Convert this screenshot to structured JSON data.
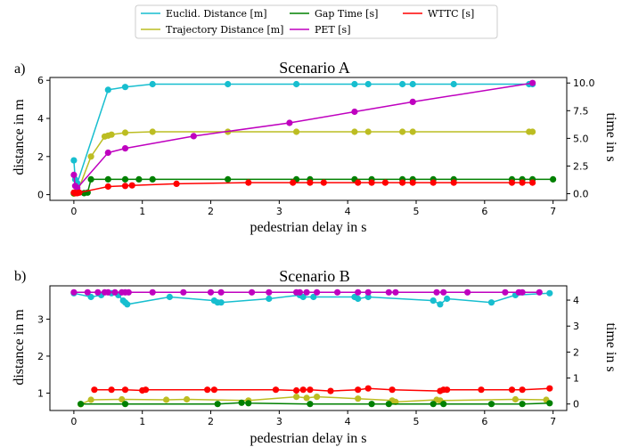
{
  "legend": {
    "items": [
      {
        "label": "Euclid. Distance [m]",
        "color": "#17becf"
      },
      {
        "label": "Trajectory Distance [m]",
        "color": "#bcbd22"
      },
      {
        "label": "Gap Time [s]",
        "color": "#008000"
      },
      {
        "label": "PET [s]",
        "color": "#bf00bf"
      },
      {
        "label": "WTTC [s]",
        "color": "#ff0000"
      }
    ]
  },
  "chart_data": [
    {
      "type": "line",
      "panel_label": "a)",
      "title": "Scenario A",
      "xlabel": "pedestrian delay in s",
      "ylabel": "distance in m",
      "y2label": "time in s",
      "xlim": [
        -0.35,
        7.2
      ],
      "ylim": [
        -0.3,
        6.15
      ],
      "y2lim": [
        -0.6,
        10.5
      ],
      "xticks": [
        "0",
        "1",
        "2",
        "3",
        "4",
        "5",
        "6",
        "7"
      ],
      "yticks": [
        "0",
        "2",
        "4",
        "6"
      ],
      "y2ticks": [
        "0.0",
        "2.5",
        "5.0",
        "7.5",
        "10.0"
      ],
      "grid": false,
      "series": [
        {
          "name": "Euclid. Distance [m]",
          "color": "#17becf",
          "axis": "left",
          "x": [
            0.0,
            0.02,
            0.05,
            0.5,
            0.75,
            1.15,
            2.25,
            3.25,
            4.1,
            4.3,
            4.8,
            4.95,
            5.55,
            6.65,
            6.7
          ],
          "y": [
            1.8,
            0.8,
            0.6,
            5.5,
            5.65,
            5.8,
            5.8,
            5.8,
            5.8,
            5.8,
            5.8,
            5.8,
            5.8,
            5.8,
            5.8
          ]
        },
        {
          "name": "Trajectory Distance [m]",
          "color": "#bcbd22",
          "axis": "left",
          "x": [
            0.0,
            0.02,
            0.05,
            0.25,
            0.45,
            0.5,
            0.55,
            0.75,
            1.15,
            2.25,
            3.25,
            4.1,
            4.3,
            4.8,
            4.95,
            6.65,
            6.7
          ],
          "y": [
            0.05,
            0.1,
            0.1,
            2.0,
            3.05,
            3.1,
            3.15,
            3.25,
            3.3,
            3.3,
            3.3,
            3.3,
            3.3,
            3.3,
            3.3,
            3.3,
            3.3
          ]
        },
        {
          "name": "Gap Time [s]",
          "color": "#008000",
          "axis": "right",
          "x": [
            0.0,
            0.15,
            0.2,
            0.25,
            0.5,
            0.75,
            0.95,
            1.15,
            2.25,
            3.25,
            3.45,
            4.1,
            4.35,
            4.8,
            4.95,
            5.25,
            5.55,
            6.4,
            6.55,
            6.7,
            7.0
          ],
          "y": [
            0.05,
            0.05,
            0.1,
            1.3,
            1.3,
            1.3,
            1.3,
            1.3,
            1.3,
            1.3,
            1.3,
            1.3,
            1.3,
            1.3,
            1.3,
            1.3,
            1.3,
            1.3,
            1.3,
            1.3,
            1.3
          ]
        },
        {
          "name": "PET [s]",
          "color": "#bf00bf",
          "axis": "right",
          "x": [
            0.0,
            0.02,
            0.05,
            0.5,
            0.75,
            1.75,
            3.15,
            4.1,
            4.95,
            6.7
          ],
          "y": [
            1.7,
            0.7,
            0.5,
            3.7,
            4.1,
            5.2,
            6.4,
            7.4,
            8.3,
            10.0
          ]
        },
        {
          "name": "WTTC [s]",
          "color": "#ff0000",
          "axis": "right",
          "x": [
            0.0,
            0.02,
            0.05,
            0.08,
            0.5,
            0.75,
            0.85,
            1.5,
            2.55,
            3.2,
            3.45,
            3.65,
            4.15,
            4.35,
            4.55,
            4.8,
            4.95,
            5.25,
            5.55,
            6.4,
            6.55,
            6.7
          ],
          "y": [
            0.1,
            0.05,
            0.05,
            0.1,
            0.65,
            0.7,
            0.75,
            0.9,
            1.0,
            1.0,
            1.0,
            1.0,
            1.0,
            1.0,
            1.0,
            1.0,
            1.0,
            1.0,
            1.0,
            1.0,
            1.0,
            1.0
          ]
        }
      ]
    },
    {
      "type": "line",
      "panel_label": "b)",
      "title": "Scenario B",
      "xlabel": "pedestrian delay in s",
      "ylabel": "distance in m",
      "y2label": "time in s",
      "xlim": [
        -0.35,
        7.2
      ],
      "ylim": [
        0.53,
        3.9
      ],
      "y2lim": [
        -0.25,
        4.55
      ],
      "xticks": [
        "0",
        "1",
        "2",
        "3",
        "4",
        "5",
        "6",
        "7"
      ],
      "yticks": [
        "1",
        "2",
        "3"
      ],
      "y2ticks": [
        "0",
        "1",
        "2",
        "3",
        "4"
      ],
      "grid": false,
      "series": [
        {
          "name": "Euclid. Distance [m]",
          "color": "#17becf",
          "axis": "left",
          "x": [
            0.0,
            0.25,
            0.4,
            0.55,
            0.65,
            0.72,
            0.75,
            0.78,
            1.4,
            2.05,
            2.1,
            2.15,
            2.85,
            3.3,
            3.35,
            3.5,
            4.1,
            4.15,
            4.3,
            5.25,
            5.35,
            5.45,
            6.1,
            6.45,
            6.95
          ],
          "y": [
            3.7,
            3.6,
            3.65,
            3.7,
            3.65,
            3.5,
            3.45,
            3.4,
            3.6,
            3.5,
            3.45,
            3.45,
            3.55,
            3.65,
            3.6,
            3.6,
            3.6,
            3.55,
            3.6,
            3.5,
            3.4,
            3.55,
            3.45,
            3.65,
            3.7
          ]
        },
        {
          "name": "Trajectory Distance [m]",
          "color": "#bcbd22",
          "axis": "left",
          "x": [
            0.1,
            0.25,
            0.7,
            1.35,
            1.65,
            2.55,
            3.25,
            3.4,
            3.55,
            4.15,
            4.65,
            4.7,
            5.3,
            5.35,
            6.45,
            6.9
          ],
          "y": [
            0.7,
            0.82,
            0.83,
            0.82,
            0.83,
            0.8,
            0.9,
            0.87,
            0.9,
            0.85,
            0.8,
            0.76,
            0.82,
            0.8,
            0.83,
            0.82
          ]
        },
        {
          "name": "Gap Time [s]",
          "color": "#008000",
          "axis": "right",
          "x": [
            0.1,
            0.75,
            2.1,
            2.45,
            2.55,
            3.45,
            4.35,
            4.6,
            5.25,
            5.4,
            6.1,
            6.55,
            6.95
          ],
          "y": [
            0.0,
            0.0,
            0.0,
            0.05,
            0.03,
            0.0,
            0.0,
            0.0,
            0.0,
            0.0,
            0.0,
            0.0,
            0.03
          ]
        },
        {
          "name": "PET [s]",
          "color": "#bf00bf",
          "axis": "right",
          "x": [
            0.0,
            0.2,
            0.35,
            0.45,
            0.5,
            0.6,
            0.7,
            0.75,
            0.8,
            1.15,
            1.6,
            2.0,
            2.15,
            2.6,
            2.85,
            3.25,
            3.3,
            3.4,
            3.55,
            3.85,
            4.15,
            4.3,
            4.6,
            4.7,
            5.3,
            5.4,
            5.75,
            6.3,
            6.5,
            6.55,
            6.8
          ],
          "y": [
            4.3,
            4.3,
            4.3,
            4.3,
            4.3,
            4.3,
            4.3,
            4.3,
            4.3,
            4.3,
            4.3,
            4.3,
            4.3,
            4.3,
            4.3,
            4.3,
            4.3,
            4.3,
            4.3,
            4.3,
            4.3,
            4.3,
            4.3,
            4.3,
            4.3,
            4.3,
            4.3,
            4.3,
            4.3,
            4.3,
            4.3
          ]
        },
        {
          "name": "WTTC [s]",
          "color": "#ff0000",
          "axis": "right",
          "x": [
            0.3,
            0.55,
            0.75,
            1.0,
            1.05,
            1.95,
            2.05,
            2.95,
            3.25,
            3.35,
            3.45,
            3.75,
            4.15,
            4.3,
            4.65,
            5.35,
            5.4,
            5.45,
            5.95,
            6.4,
            6.55,
            6.95
          ],
          "y": [
            0.55,
            0.55,
            0.55,
            0.52,
            0.55,
            0.55,
            0.55,
            0.55,
            0.52,
            0.55,
            0.55,
            0.5,
            0.55,
            0.6,
            0.55,
            0.5,
            0.55,
            0.55,
            0.55,
            0.55,
            0.55,
            0.6
          ]
        }
      ]
    }
  ]
}
